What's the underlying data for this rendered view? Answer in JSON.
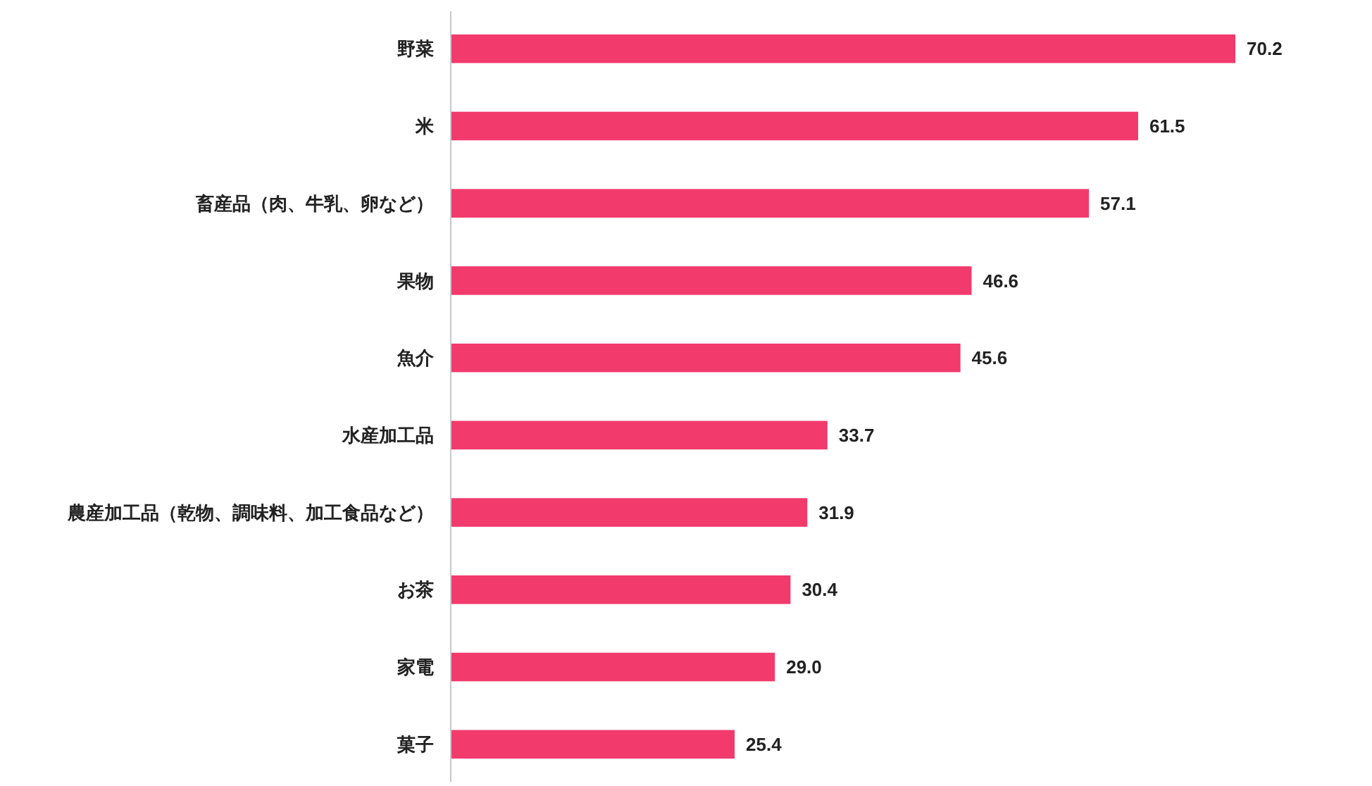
{
  "chart_data": {
    "type": "bar",
    "orientation": "horizontal",
    "categories": [
      "野菜",
      "米",
      "畜産品（肉、牛乳、卵など）",
      "果物",
      "魚介",
      "水産加工品",
      "農産加工品（乾物、調味料、加工食品など）",
      "お茶",
      "家電",
      "菓子"
    ],
    "values": [
      70.2,
      61.5,
      57.1,
      46.6,
      45.6,
      33.7,
      31.9,
      30.4,
      29.0,
      25.4
    ],
    "value_labels": [
      "70.2",
      "61.5",
      "57.1",
      "46.6",
      "45.6",
      "33.7",
      "31.9",
      "30.4",
      "29.0",
      "25.4"
    ],
    "color": "#f23a6c"
  }
}
